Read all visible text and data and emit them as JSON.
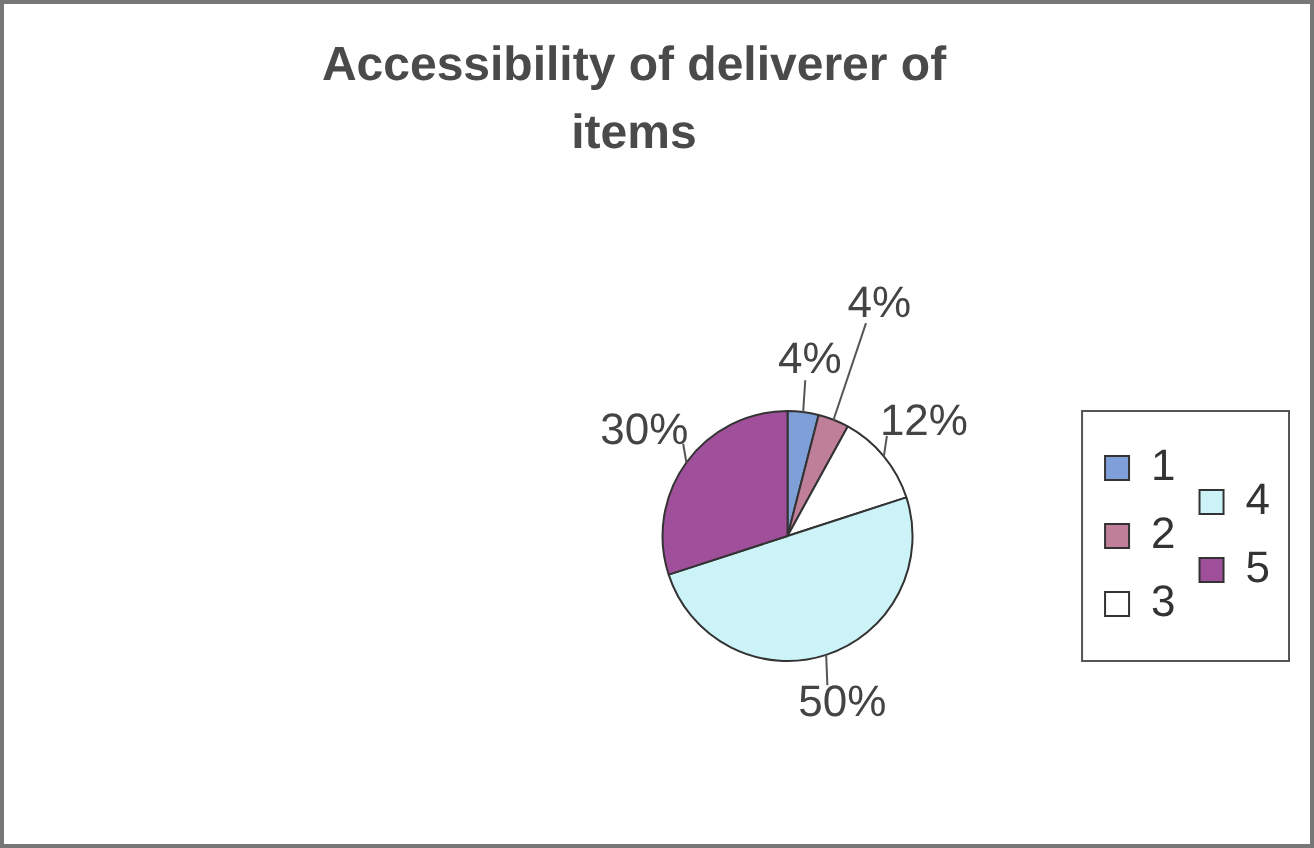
{
  "chart_data": {
    "type": "pie",
    "title": "Accessibility of deliverer of items",
    "categories": [
      "1",
      "2",
      "3",
      "4",
      "5"
    ],
    "values": [
      4,
      4,
      12,
      50,
      30
    ],
    "value_labels": [
      "4%",
      "4%",
      "12%",
      "50%",
      "30%"
    ],
    "colors": [
      "#7f9fd8",
      "#c07f98",
      "#ffffff",
      "#ccf4f8",
      "#a0509a"
    ],
    "legend": "right"
  }
}
